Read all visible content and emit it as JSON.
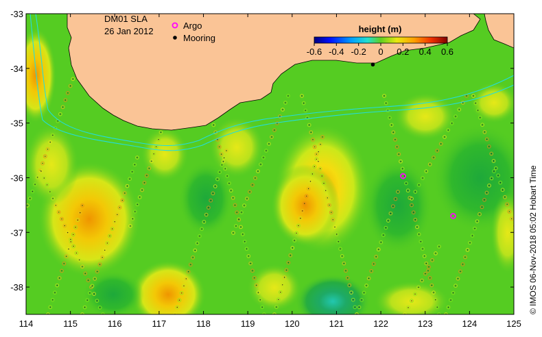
{
  "map": {
    "product_label": "DM01 SLA",
    "date_label": "26 Jan 2012",
    "legend": {
      "argo_label": "Argo",
      "mooring_label": "Mooring",
      "argo_color": "#ff00ff",
      "mooring_color": "#000000"
    },
    "colorbar": {
      "title": "height (m)",
      "ticks": [
        "-0.6",
        "-0.4",
        "-0.2",
        "0",
        "0.2",
        "0.4",
        "0.6"
      ],
      "range": [
        -0.6,
        0.6
      ]
    },
    "axes": {
      "lon_ticks": [
        "114",
        "115",
        "116",
        "117",
        "118",
        "119",
        "120",
        "121",
        "122",
        "123",
        "124",
        "125"
      ],
      "lat_ticks": [
        "-33",
        "-34",
        "-35",
        "-36",
        "-37",
        "-38"
      ],
      "lon_range": [
        114,
        125
      ],
      "lat_range": [
        -38.5,
        -33
      ]
    },
    "credit": "© IMOS 06-Nov-2018 05:02 Hobart Time",
    "colors": {
      "land": "#fac496",
      "base_sea": "#55cc22",
      "contour": "#22dddd"
    },
    "argo_floats": [
      {
        "lon": 122.5,
        "lat": -35.97
      },
      {
        "lon": 123.63,
        "lat": -36.7
      }
    ],
    "moorings": [
      {
        "lon": 121.82,
        "lat": -33.93
      }
    ]
  }
}
